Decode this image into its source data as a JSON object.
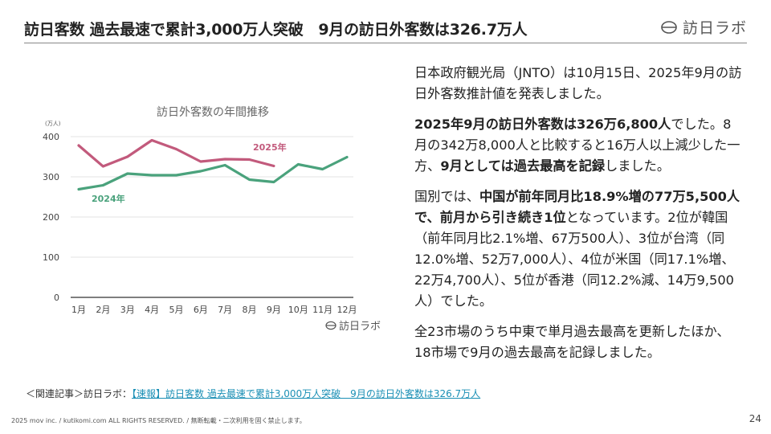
{
  "header": {
    "title": "訪日客数 過去最速で累計3,000万人突破　9月の訪日外客数は326.7万人",
    "brand": "訪日ラボ",
    "brand_icon": "logo-icon"
  },
  "chart_data": {
    "type": "line",
    "title": "訪日外客数の年間推移",
    "unit_label": "(万人)",
    "categories": [
      "1月",
      "2月",
      "3月",
      "4月",
      "5月",
      "6月",
      "7月",
      "8月",
      "9月",
      "10月",
      "11月",
      "12月"
    ],
    "ylim": [
      0,
      400
    ],
    "yticks": [
      0,
      100,
      200,
      300,
      400
    ],
    "grid": true,
    "series": [
      {
        "name": "2025年",
        "color": "#c25a7c",
        "values": [
          378,
          326,
          350,
          391,
          369,
          338,
          344,
          343,
          327,
          null,
          null,
          null
        ]
      },
      {
        "name": "2024年",
        "color": "#4aa27c",
        "values": [
          269,
          279,
          308,
          304,
          304,
          314,
          329,
          293,
          287,
          331,
          319,
          349
        ]
      }
    ],
    "watermark": "訪日ラボ"
  },
  "body": {
    "p1": "日本政府観光局（JNTO）は10月15日、2025年9月の訪日外客数推計値を発表しました。",
    "p2_bold1": "2025年9月の訪日外客数は326万6,800人",
    "p2_text1": "でした。8月の342万8,000人と比較すると16万人以上減少した一方、",
    "p2_bold2": "9月としては過去最高を記録",
    "p2_text2": "しました。",
    "p3_text1": "国別では、",
    "p3_bold1": "中国が前年同月比18.9%増の77万5,500人で、前月から引き続き1位",
    "p3_text2": "となっています。2位が韓国（前年同月比2.1%増、67万500人）、3位が台湾（同12.0%増、52万7,000人）、4位が米国（同17.1%増、22万4,700人）、5位が香港（同12.2%減、14万9,500人）でした。",
    "p4": "全23市場のうち中東で単月過去最高を更新したほか、18市場で9月の過去最高を記録しました。"
  },
  "related": {
    "prefix": "＜関連記事＞訪日ラボ：",
    "link_text": "【速報】訪日客数 過去最速で累計3,000万人突破　9月の訪日外客数は326.7万人"
  },
  "footer": {
    "copyright": "2025 mov inc. / kutikomi.com ALL RIGHTS RESERVED. / 無断転載・二次利用を固く禁止します。",
    "page": "24"
  }
}
